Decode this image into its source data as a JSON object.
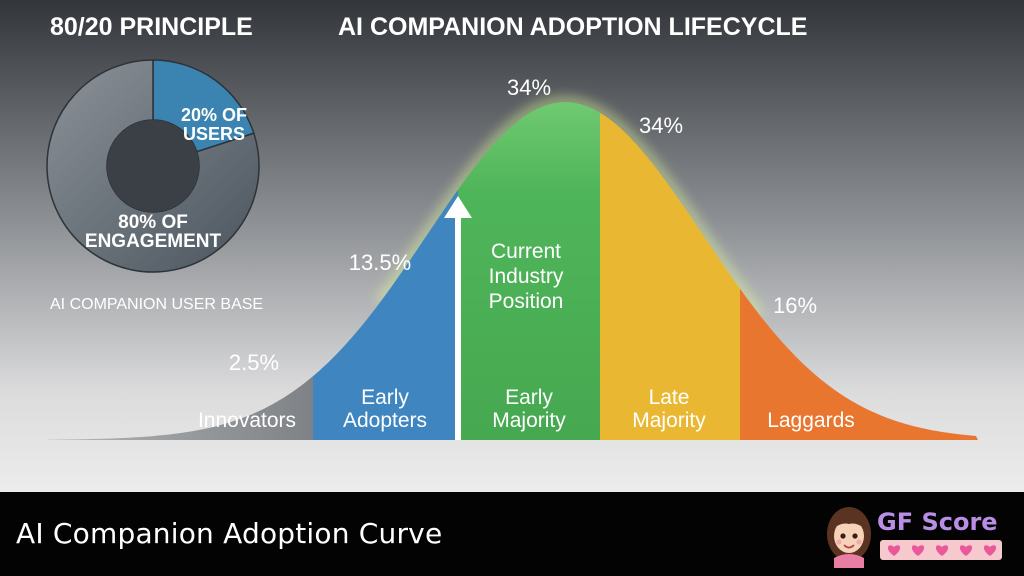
{
  "header": {
    "left_title": "80/20 PRINCIPLE",
    "right_title": "AI COMPANION ADOPTION LIFECYCLE"
  },
  "chart_data": [
    {
      "type": "pie",
      "variant": "donut",
      "slices": [
        {
          "label_line1": "20% OF",
          "label_line2": "USERS",
          "value": 20,
          "color": "#3b83b0"
        },
        {
          "label_line1": "80% OF",
          "label_line2": "ENGAGEMENT",
          "value": 80,
          "color": "#5f6a72"
        }
      ],
      "caption": "AI COMPANION USER BASE"
    },
    {
      "type": "area",
      "subtype": "bell-curve",
      "segments": [
        {
          "name": "Innovators",
          "name_lines": [
            "Innovators"
          ],
          "percent_label": "2.5%",
          "value": 2.5,
          "color": "#8d8f93"
        },
        {
          "name": "Early Adopters",
          "name_lines": [
            "Early",
            "Adopters"
          ],
          "percent_label": "13.5%",
          "value": 13.5,
          "color": "#3f86c0"
        },
        {
          "name": "Early Majority",
          "name_lines": [
            "Early",
            "Majority"
          ],
          "percent_label": "34%",
          "value": 34,
          "color": "#4fb55a"
        },
        {
          "name": "Late Majority",
          "name_lines": [
            "Late",
            "Majority"
          ],
          "percent_label": "34%",
          "value": 34,
          "color": "#e9b732"
        },
        {
          "name": "Laggards",
          "name_lines": [
            "Laggards"
          ],
          "percent_label": "16%",
          "value": 16,
          "color": "#e9762f"
        }
      ],
      "marker": {
        "label_lines": [
          "Current",
          "Industry",
          "Position"
        ],
        "position": "start of Early Majority"
      }
    }
  ],
  "footer": {
    "title": "AI Companion Adoption Curve",
    "brand": "GF Score",
    "hearts": 5
  }
}
